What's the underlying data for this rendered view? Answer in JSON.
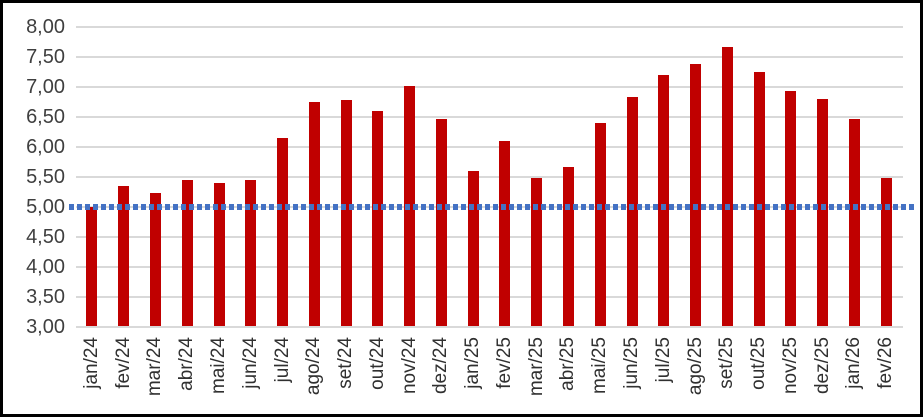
{
  "chart_data": {
    "type": "bar",
    "title": "",
    "categories": [
      "jan/24",
      "fev/24",
      "mar/24",
      "abr/24",
      "mai/24",
      "jun/24",
      "jul/24",
      "ago/24",
      "set/24",
      "out/24",
      "nov/24",
      "dez/24",
      "jan/25",
      "fev/25",
      "mar/25",
      "abr/25",
      "mai/25",
      "jun/25",
      "jul/25",
      "ago/25",
      "set/25",
      "out/25",
      "nov/25",
      "dez/25",
      "jan/26",
      "fev/26"
    ],
    "series": [
      {
        "name": "monthly-values",
        "type": "bar",
        "color": "#C00000",
        "values": [
          5.0,
          5.35,
          5.24,
          5.45,
          5.4,
          5.45,
          6.15,
          6.75,
          6.78,
          6.6,
          7.02,
          6.47,
          5.6,
          6.1,
          5.48,
          5.67,
          6.4,
          6.83,
          7.2,
          7.38,
          7.67,
          7.25,
          6.93,
          6.8,
          6.47,
          5.48
        ]
      },
      {
        "name": "reference-line",
        "type": "line",
        "line_style": "dotted",
        "color": "#4472C4",
        "value": 5.0
      }
    ],
    "xlabel": "",
    "ylabel": "",
    "ylim": [
      3.0,
      8.0
    ],
    "ytick_step": 0.5,
    "ytick_labels": [
      "8,00",
      "7,50",
      "7,00",
      "6,50",
      "6,00",
      "5,50",
      "5,00",
      "4,50",
      "4,00",
      "3,50",
      "3,00"
    ],
    "decimal_separator": ",",
    "grid": true,
    "gridline_color": "#D9D9D9",
    "legend_position": "none",
    "background_color": "#FFFFFF",
    "border_color": "#000000",
    "tick_label_color": "#3F3F3F"
  }
}
